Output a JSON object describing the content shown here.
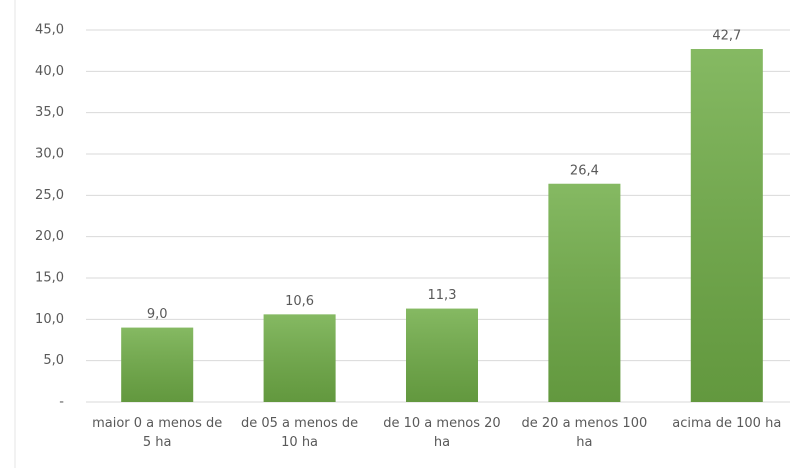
{
  "chart_data": {
    "type": "bar",
    "categories": [
      "maior 0 a menos de 5 ha",
      "de 05 a menos de 10 ha",
      "de 10 a menos 20 ha",
      "de 20 a menos 100 ha",
      "acima de 100 ha"
    ],
    "values": [
      9.0,
      10.6,
      11.3,
      26.4,
      42.7
    ],
    "value_labels": [
      "9,0",
      "10,6",
      "11,3",
      "26,4",
      "42,7"
    ],
    "color": "#70ad47",
    "ylim": [
      0,
      45
    ],
    "yticks": [
      {
        "value": 0,
        "label": "-"
      },
      {
        "value": 5,
        "label": "5,0"
      },
      {
        "value": 10,
        "label": "10,0"
      },
      {
        "value": 15,
        "label": "15,0"
      },
      {
        "value": 20,
        "label": "20,0"
      },
      {
        "value": 25,
        "label": "25,0"
      },
      {
        "value": 30,
        "label": "30,0"
      },
      {
        "value": 35,
        "label": "35,0"
      },
      {
        "value": 40,
        "label": "40,0"
      },
      {
        "value": 45,
        "label": "45,0"
      }
    ],
    "grid": true
  }
}
